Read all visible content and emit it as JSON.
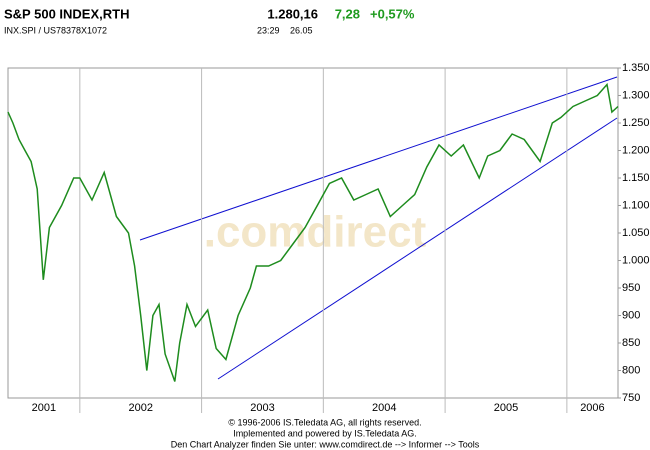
{
  "header": {
    "title": "S&P 500 INDEX,RTH",
    "price": "1.280,16",
    "change": "7,28",
    "change_pct": "+0,57%",
    "isin": "INX.SPI  /  US78378X1072",
    "time": "23:29",
    "date": "26.05"
  },
  "chart_data": {
    "type": "line",
    "watermark": ".comdirect",
    "x": [
      2001.41,
      2001.45,
      2001.5,
      2001.55,
      2001.6,
      2001.65,
      2001.7,
      2001.75,
      2001.85,
      2001.95,
      2002.0,
      2002.1,
      2002.2,
      2002.3,
      2002.4,
      2002.45,
      2002.5,
      2002.55,
      2002.6,
      2002.65,
      2002.7,
      2002.78,
      2002.82,
      2002.88,
      2002.95,
      2003.05,
      2003.12,
      2003.2,
      2003.3,
      2003.4,
      2003.45,
      2003.55,
      2003.65,
      2003.75,
      2003.85,
      2003.95,
      2004.05,
      2004.15,
      2004.25,
      2004.35,
      2004.45,
      2004.55,
      2004.65,
      2004.75,
      2004.85,
      2004.95,
      2005.05,
      2005.15,
      2005.28,
      2005.35,
      2005.45,
      2005.55,
      2005.65,
      2005.78,
      2005.88,
      2005.95,
      2006.05,
      2006.15,
      2006.25,
      2006.33,
      2006.37,
      2006.42
    ],
    "series": [
      {
        "name": "S&P 500",
        "color": "#1e8c1e",
        "values": [
          1270,
          1250,
          1220,
          1200,
          1180,
          1130,
          965,
          1060,
          1100,
          1150,
          1150,
          1110,
          1160,
          1080,
          1050,
          990,
          900,
          800,
          900,
          920,
          830,
          780,
          850,
          920,
          880,
          910,
          840,
          820,
          900,
          950,
          990,
          990,
          1000,
          1030,
          1060,
          1100,
          1140,
          1150,
          1110,
          1120,
          1130,
          1080,
          1100,
          1120,
          1170,
          1210,
          1190,
          1210,
          1150,
          1190,
          1200,
          1230,
          1220,
          1180,
          1250,
          1260,
          1280,
          1290,
          1300,
          1320,
          1270,
          1280
        ]
      }
    ],
    "xlim": [
      2001.41,
      2006.42
    ],
    "xticks": [
      2001,
      2002,
      2003,
      2004,
      2005,
      2006
    ],
    "ylim": [
      750,
      1350
    ],
    "yticks": [
      750,
      800,
      850,
      900,
      950,
      {
        "value": 1000,
        "label": "1.000"
      },
      {
        "value": 1050,
        "label": "1.050"
      },
      {
        "value": 1100,
        "label": "1.100"
      },
      {
        "value": 1150,
        "label": "1.150"
      },
      {
        "value": 1200,
        "label": "1.200"
      },
      {
        "value": 1250,
        "label": "1.250"
      },
      {
        "value": 1300,
        "label": "1.300"
      },
      {
        "value": 1350,
        "label": "1.350"
      }
    ],
    "grid": true
  },
  "footer": [
    "© 1996-2006 IS.Teledata AG, all rights reserved.",
    "Implemented and powered by IS.Teledata AG.",
    "Den Chart Analyzer finden Sie unter: www.comdirect.de --> Informer --> Tools"
  ]
}
